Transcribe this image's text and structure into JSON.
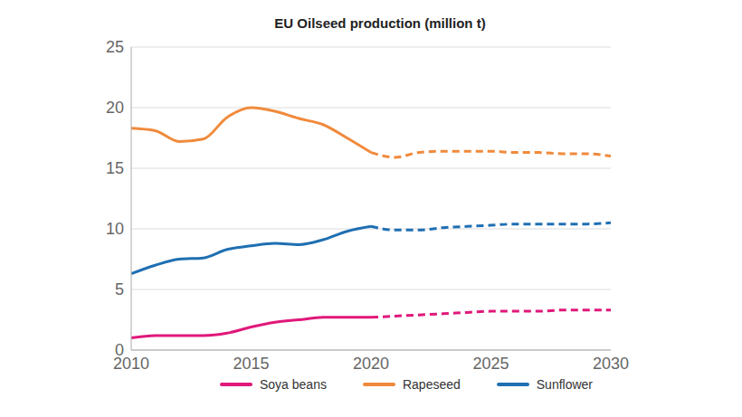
{
  "chart_data": {
    "type": "line",
    "title": "EU Oilseed production (million t)",
    "x": [
      2010,
      2011,
      2012,
      2013,
      2014,
      2015,
      2016,
      2017,
      2018,
      2019,
      2020,
      2021,
      2022,
      2023,
      2024,
      2025,
      2026,
      2027,
      2028,
      2029,
      2030
    ],
    "xlim": [
      2010,
      2030
    ],
    "xticks": [
      2010,
      2015,
      2020,
      2025,
      2030
    ],
    "ylim": [
      0,
      25
    ],
    "yticks": [
      0,
      5,
      10,
      15,
      20,
      25
    ],
    "grid": true,
    "legend": "bottom",
    "series": [
      {
        "name": "Soya beans",
        "color": "#e0187a",
        "line_style": "solid",
        "values": [
          1.0,
          1.2,
          1.2,
          1.2,
          1.4,
          1.9,
          2.3,
          2.5,
          2.7,
          2.7,
          2.7,
          null,
          null,
          null,
          null,
          null,
          null,
          null,
          null,
          null,
          null
        ]
      },
      {
        "name": "Rapeseed",
        "color": "#f08a3c",
        "line_style": "solid",
        "values": [
          18.3,
          18.1,
          17.2,
          17.4,
          19.2,
          20.0,
          19.7,
          19.1,
          18.6,
          17.5,
          16.3,
          null,
          null,
          null,
          null,
          null,
          null,
          null,
          null,
          null,
          null
        ]
      },
      {
        "name": "Sunflower",
        "color": "#1f6fb2",
        "line_style": "solid",
        "values": [
          6.3,
          7.0,
          7.5,
          7.6,
          8.3,
          8.6,
          8.8,
          8.7,
          9.1,
          9.8,
          10.2,
          null,
          null,
          null,
          null,
          null,
          null,
          null,
          null,
          null,
          null
        ]
      },
      {
        "name": "Soya beans",
        "color": "#e0187a",
        "line_style": "dashed",
        "values": [
          null,
          null,
          null,
          null,
          null,
          null,
          null,
          null,
          null,
          null,
          2.7,
          2.8,
          2.9,
          3.0,
          3.1,
          3.2,
          3.2,
          3.2,
          3.3,
          3.3,
          3.3
        ]
      },
      {
        "name": "Rapeseed",
        "color": "#f08a3c",
        "line_style": "dashed",
        "values": [
          null,
          null,
          null,
          null,
          null,
          null,
          null,
          null,
          null,
          null,
          16.3,
          15.9,
          16.3,
          16.4,
          16.4,
          16.4,
          16.3,
          16.3,
          16.2,
          16.2,
          16.0
        ]
      },
      {
        "name": "Sunflower",
        "color": "#1f6fb2",
        "line_style": "dashed",
        "values": [
          null,
          null,
          null,
          null,
          null,
          null,
          null,
          null,
          null,
          null,
          10.2,
          9.9,
          9.9,
          10.1,
          10.2,
          10.3,
          10.4,
          10.4,
          10.4,
          10.4,
          10.5
        ]
      }
    ]
  }
}
